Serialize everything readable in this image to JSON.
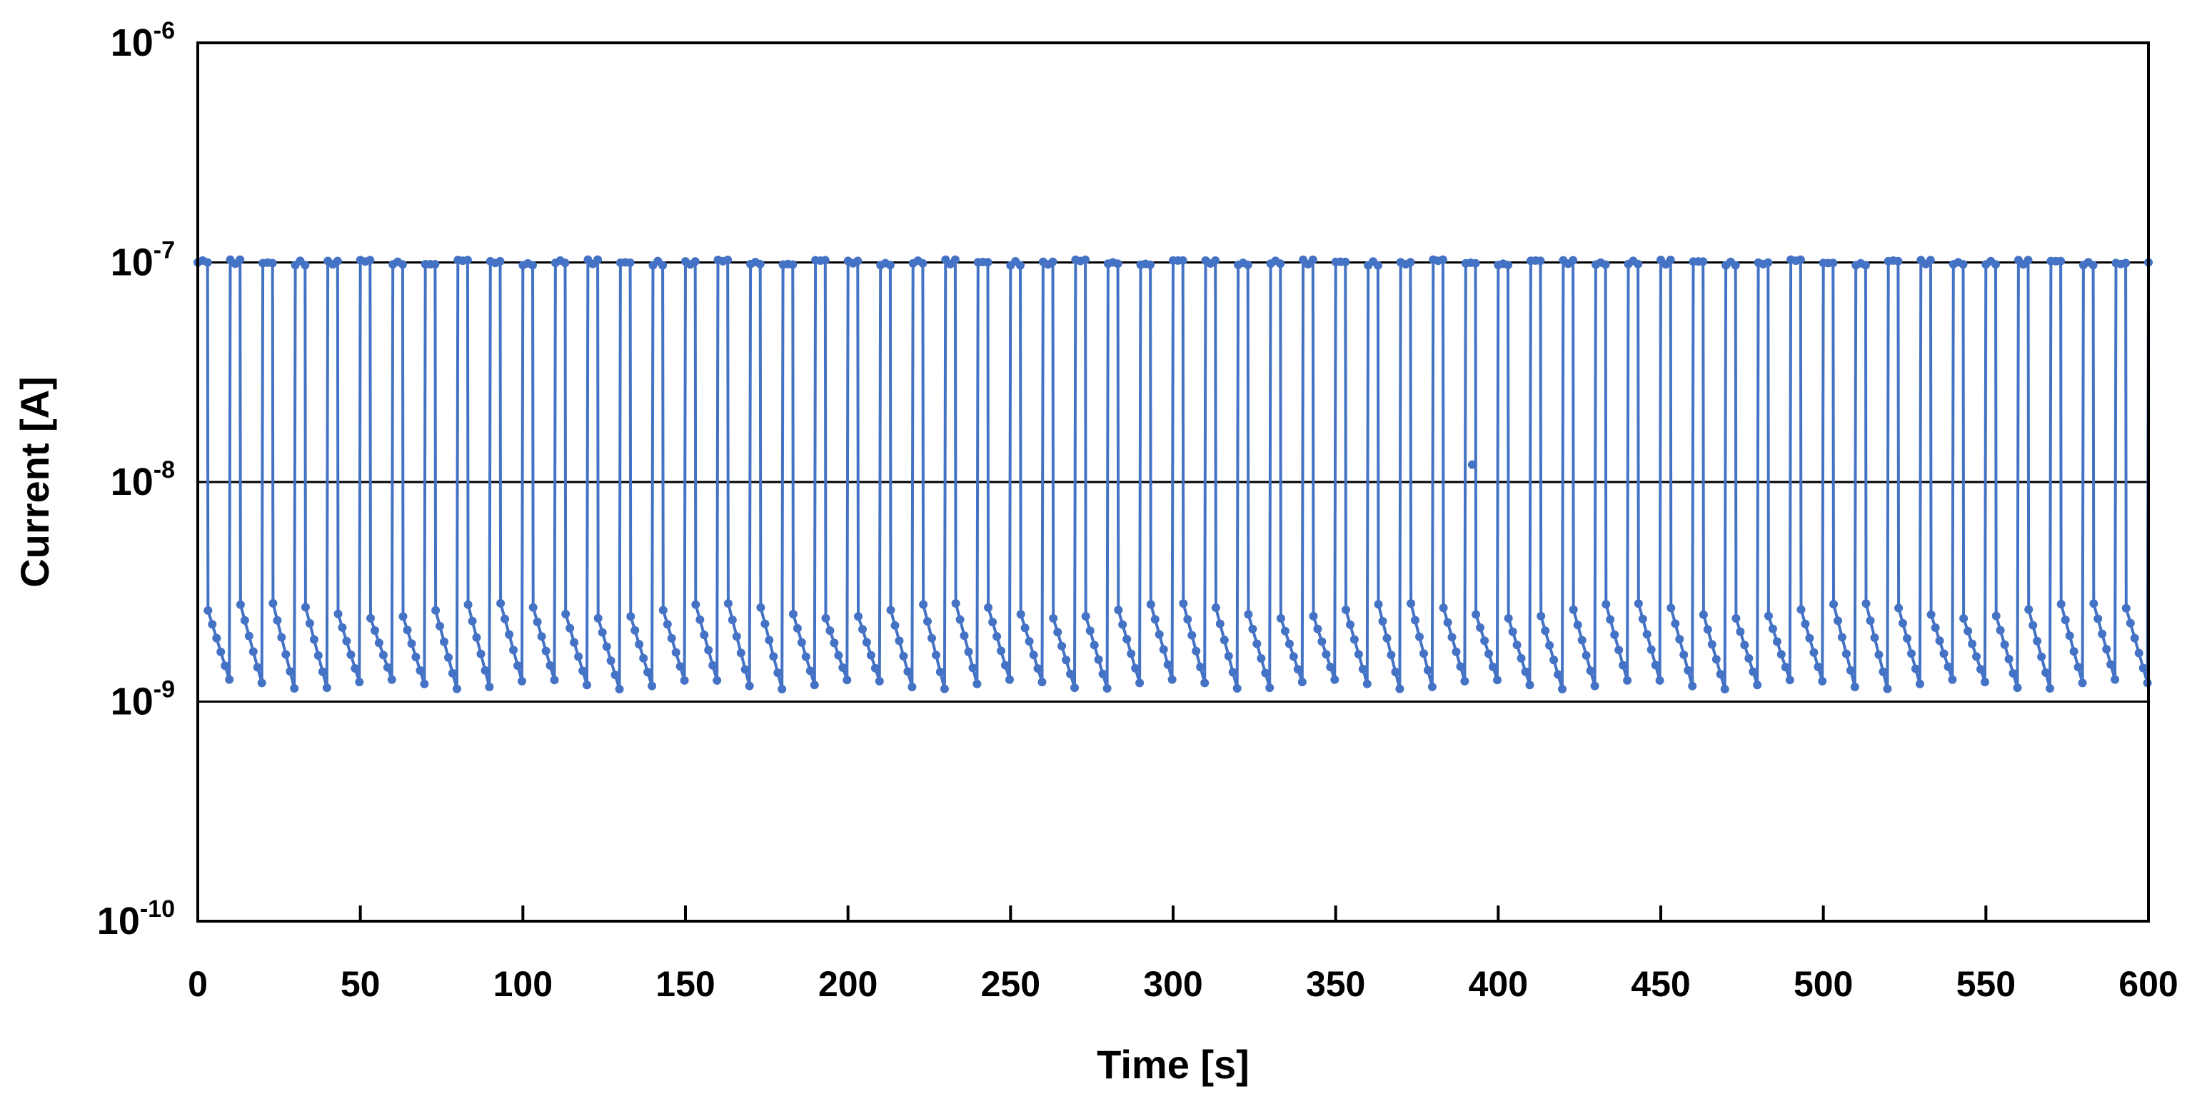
{
  "chart_data": {
    "type": "line",
    "title": "",
    "xlabel": "Time [s]",
    "ylabel": "Current [A]",
    "xlim": [
      0,
      600
    ],
    "ylim": [
      1e-10,
      1e-06
    ],
    "yscale": "log",
    "grid": "horizontal major lines at 1e-7, 1e-8, 1e-9",
    "legend": "none",
    "series_color": "#4472C4",
    "x_ticks": [
      "0",
      "50",
      "100",
      "150",
      "200",
      "250",
      "300",
      "350",
      "400",
      "450",
      "500",
      "550",
      "600"
    ],
    "y_ticks": [
      {
        "base": "10",
        "exp": "-6",
        "value": 1e-06
      },
      {
        "base": "10",
        "exp": "-7",
        "value": 1e-07
      },
      {
        "base": "10",
        "exp": "-8",
        "value": 1e-08
      },
      {
        "base": "10",
        "exp": "-9",
        "value": 1e-09
      },
      {
        "base": "10",
        "exp": "-10",
        "value": 1e-10
      }
    ],
    "series": [
      {
        "name": "Current",
        "pulse_period_s": 10,
        "on_duration_s": 3,
        "on_current_A": 1e-07,
        "off_current_start_A": 2.6e-09,
        "off_current_end_A": 1.2e-09,
        "cycles": 60,
        "anomaly": {
          "x": 392,
          "y": 1.2e-08
        }
      }
    ]
  }
}
